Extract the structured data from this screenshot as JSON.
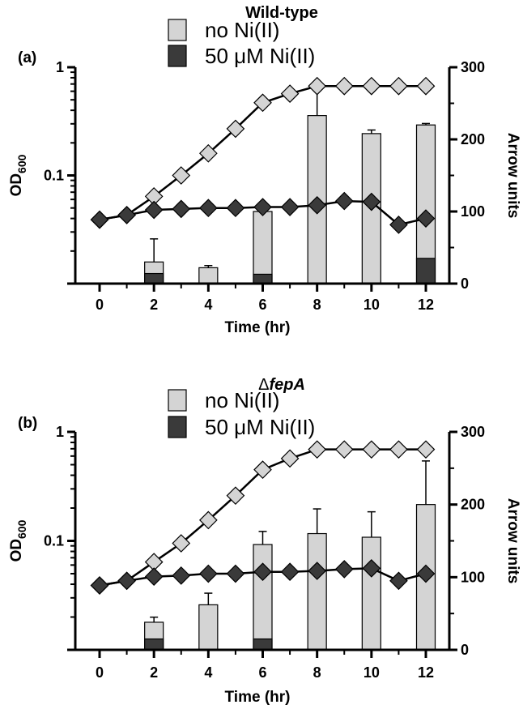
{
  "colors": {
    "no_ni": "#d4d4d4",
    "ni": "#3a3a3a",
    "axis": "#000000"
  },
  "chart_data": [
    {
      "type": "bar+line",
      "panel_label": "(a)",
      "title": "Wild-type",
      "title_italic": false,
      "title_prefix": "",
      "xlabel": "Time (hr)",
      "ylabel_left": "OD",
      "ylabel_left_sub": "600",
      "ylabel_right": "Arrow units",
      "x_ticks": [
        0,
        2,
        4,
        6,
        8,
        10,
        12
      ],
      "x_tick_labels": [
        "0",
        "2",
        "4",
        "6",
        "8",
        "10",
        "12"
      ],
      "xlim": [
        -0.5,
        12.6
      ],
      "y_left_scale": "log",
      "y_left_lim": [
        0.01,
        1
      ],
      "y_left_tick_labels": [
        "0.1",
        "1"
      ],
      "y_right_lim": [
        0,
        300
      ],
      "y_right_ticks": [
        0,
        100,
        200,
        300
      ],
      "y_right_tick_labels": [
        "0",
        "100",
        "200",
        "300"
      ],
      "legend": [
        "no Ni(II)",
        "50 μM Ni(II)"
      ],
      "bars": {
        "x": [
          2,
          4,
          6,
          8,
          10,
          12
        ],
        "no_ni": {
          "values": [
            30,
            22,
            100,
            233,
            208,
            220
          ],
          "err_high": [
            62,
            25,
            100,
            275,
            213,
            222
          ],
          "err_low": [
            30,
            22,
            100,
            233,
            208,
            220
          ]
        },
        "ni": {
          "values": [
            14,
            0,
            13,
            0,
            0,
            35
          ],
          "err_high": [
            14,
            0,
            16,
            0,
            0,
            35
          ],
          "err_low": [
            14,
            0,
            13,
            0,
            0,
            35
          ]
        }
      },
      "od_series": {
        "no_ni": {
          "x": [
            0,
            1,
            2,
            3,
            4,
            5,
            6,
            7,
            8,
            9,
            10,
            11,
            12
          ],
          "values": [
            0.039,
            0.043,
            0.064,
            0.1,
            0.16,
            0.27,
            0.47,
            0.57,
            0.67,
            0.67,
            0.67,
            0.67,
            0.67
          ]
        },
        "ni": {
          "x": [
            0,
            1,
            2,
            3,
            4,
            5,
            6,
            7,
            8,
            9,
            10,
            11,
            12
          ],
          "values": [
            0.039,
            0.043,
            0.048,
            0.049,
            0.05,
            0.05,
            0.051,
            0.051,
            0.053,
            0.058,
            0.057,
            0.035,
            0.04
          ]
        }
      }
    },
    {
      "type": "bar+line",
      "panel_label": "(b)",
      "title": "fepA",
      "title_italic": true,
      "title_prefix": "Δ",
      "xlabel": "Time (hr)",
      "ylabel_left": "OD",
      "ylabel_left_sub": "600",
      "ylabel_right": "Arrow units",
      "x_ticks": [
        0,
        2,
        4,
        6,
        8,
        10,
        12
      ],
      "x_tick_labels": [
        "0",
        "2",
        "4",
        "6",
        "8",
        "10",
        "12"
      ],
      "xlim": [
        -0.5,
        12.6
      ],
      "y_left_scale": "log",
      "y_left_lim": [
        0.01,
        1
      ],
      "y_left_tick_labels": [
        "0.1",
        "1"
      ],
      "y_right_lim": [
        0,
        300
      ],
      "y_right_ticks": [
        0,
        100,
        200,
        300
      ],
      "y_right_tick_labels": [
        "0",
        "100",
        "200",
        "300"
      ],
      "legend": [
        "no Ni(II)",
        "50 μM Ni(II)"
      ],
      "bars": {
        "x": [
          2,
          4,
          6,
          8,
          10,
          12
        ],
        "no_ni": {
          "values": [
            38,
            62,
            145,
            160,
            155,
            200
          ],
          "err_high": [
            45,
            78,
            163,
            194,
            190,
            260
          ],
          "err_low": [
            38,
            62,
            145,
            160,
            155,
            200
          ]
        },
        "ni": {
          "values": [
            15,
            0,
            15,
            0,
            0,
            0
          ],
          "err_high": [
            15,
            0,
            15,
            0,
            0,
            0
          ],
          "err_low": [
            15,
            0,
            15,
            0,
            0,
            0
          ]
        }
      },
      "od_series": {
        "no_ni": {
          "x": [
            0,
            1,
            2,
            3,
            4,
            5,
            6,
            7,
            8,
            9,
            10,
            11,
            12
          ],
          "values": [
            0.039,
            0.043,
            0.064,
            0.095,
            0.155,
            0.26,
            0.45,
            0.57,
            0.69,
            0.69,
            0.69,
            0.69,
            0.69
          ]
        },
        "ni": {
          "x": [
            0,
            1,
            2,
            3,
            4,
            5,
            6,
            7,
            8,
            9,
            10,
            11,
            12
          ],
          "values": [
            0.039,
            0.043,
            0.047,
            0.048,
            0.05,
            0.05,
            0.052,
            0.052,
            0.053,
            0.055,
            0.056,
            0.043,
            0.05
          ]
        }
      }
    }
  ]
}
